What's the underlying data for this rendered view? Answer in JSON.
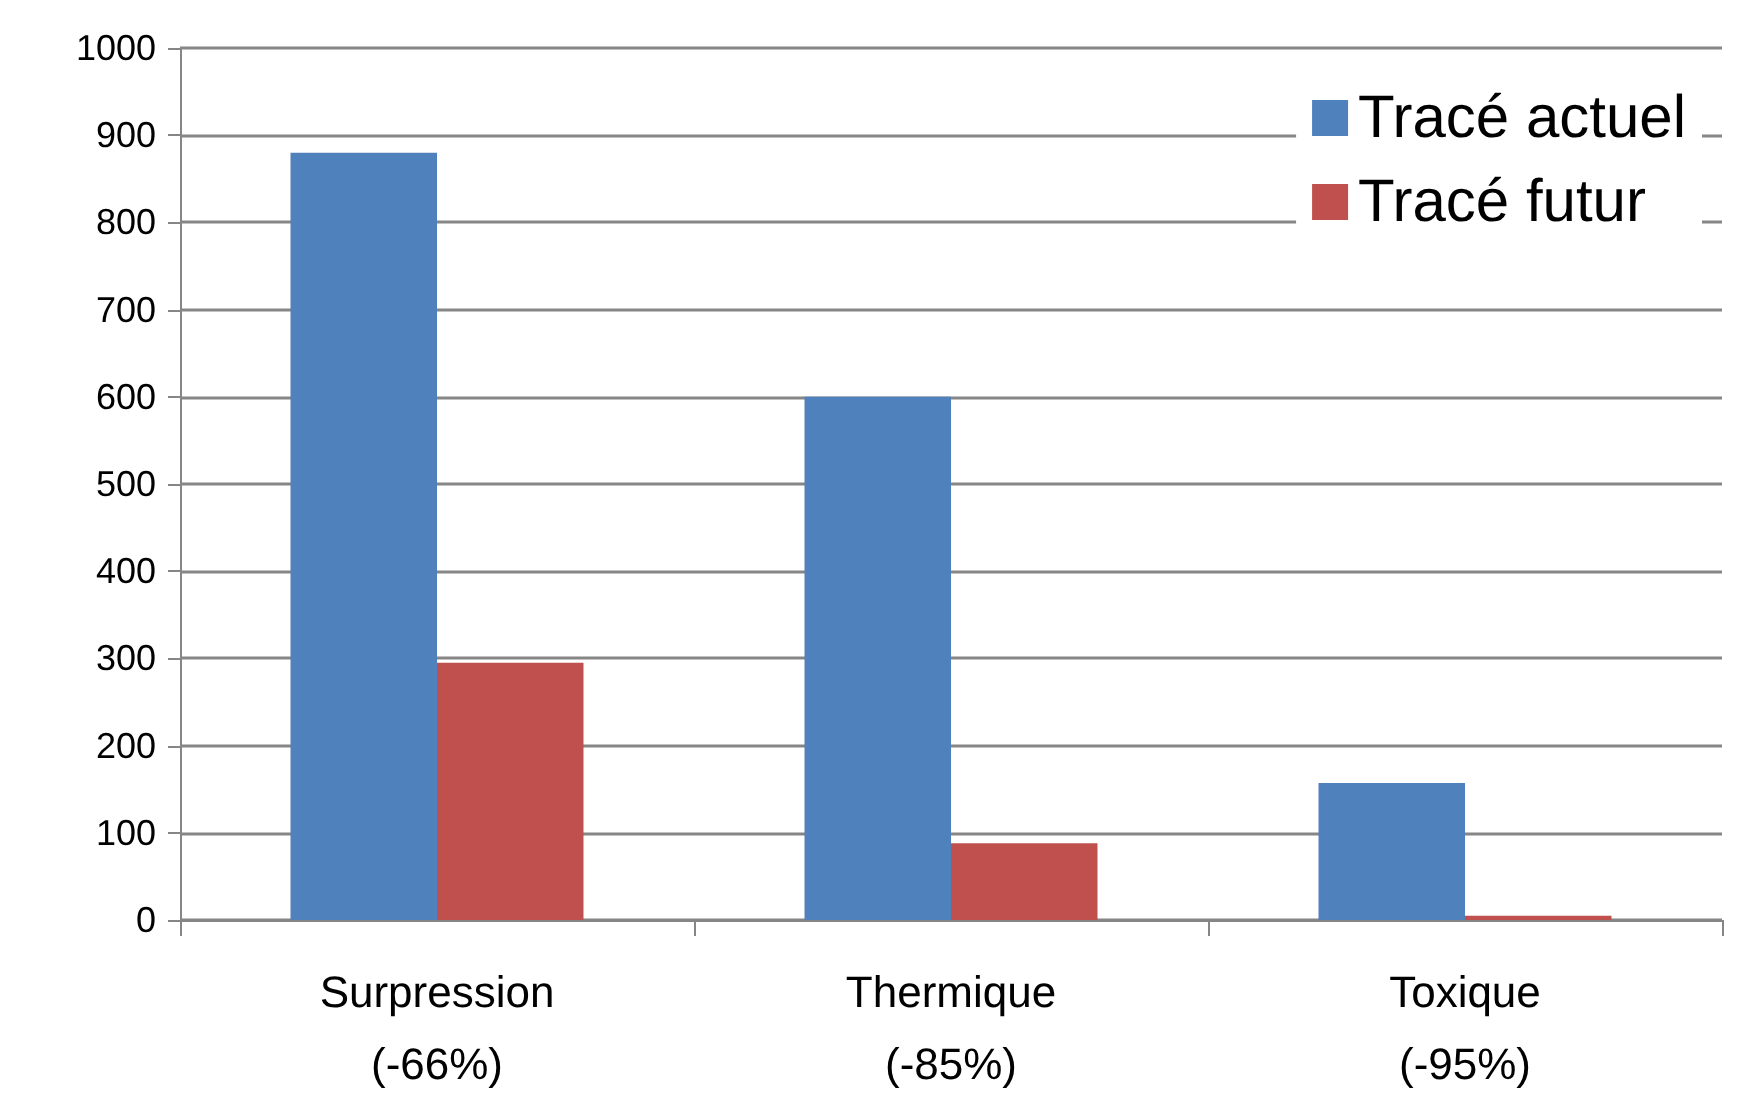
{
  "chart_data": {
    "type": "bar",
    "categories": [
      "Surpression\n(-66%)",
      "Thermique\n(-85%)",
      "Toxique\n(-95%)"
    ],
    "series": [
      {
        "name": "Tracé actuel",
        "color": "#4f81bd",
        "values": [
          880,
          600,
          157
        ]
      },
      {
        "name": "Tracé futur",
        "color": "#c0504d",
        "values": [
          295,
          88,
          5
        ]
      }
    ],
    "ylim": [
      0,
      1000
    ],
    "yticks": [
      0,
      100,
      200,
      300,
      400,
      500,
      600,
      700,
      800,
      900,
      1000
    ],
    "grid": "y",
    "legend": "top right"
  }
}
